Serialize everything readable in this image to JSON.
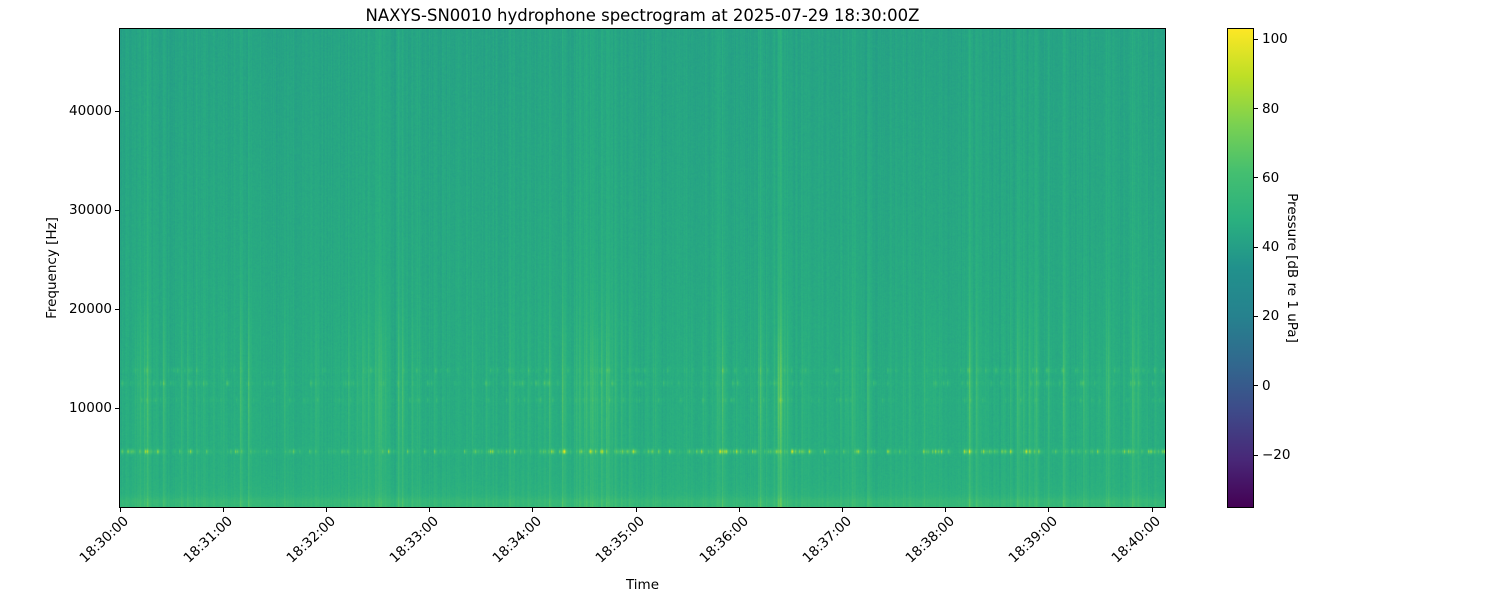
{
  "figure": {
    "background_color": "#ffffff"
  },
  "chart_data": {
    "type": "heatmap",
    "subtype": "hydrophone-spectrogram",
    "title": "NAXYS-SN0010 hydrophone spectrogram at 2025-07-29 18:30:00Z",
    "xlabel": "Time",
    "ylabel": "Frequency [Hz]",
    "x_tick_labels": [
      "18:30:00",
      "18:31:00",
      "18:32:00",
      "18:33:00",
      "18:34:00",
      "18:35:00",
      "18:36:00",
      "18:37:00",
      "18:38:00",
      "18:39:00",
      "18:40:00"
    ],
    "x_tick_interval_seconds": 60,
    "y_tick_values": [
      10000,
      20000,
      30000,
      40000
    ],
    "ylim": [
      0,
      48300
    ],
    "grid": false,
    "colorbar": {
      "label": "Pressure [dB re 1 uPa]",
      "tick_values": [
        100,
        80,
        60,
        40,
        20,
        0,
        -20
      ],
      "tick_labels": [
        "100",
        "80",
        "60",
        "40",
        "20",
        "0",
        "−20"
      ],
      "vmin": -35,
      "vmax": 103,
      "colormap": "viridis",
      "colormap_stops": [
        "#440154",
        "#482878",
        "#3e4a89",
        "#31688e",
        "#26828e",
        "#21918c",
        "#2ab07f",
        "#44bf70",
        "#7ad151",
        "#bddf26",
        "#fde725"
      ],
      "position": "right"
    },
    "content": {
      "description": "Teal-green ambient noise field (~42-48 dB) with vertical broadband impulse striations strongest below ~16 kHz, an intermittent bright dashed tonal band near 5.6 kHz reaching ~80 dB, weaker dash bands near 10.8, 12.5 and 13.8 kHz, and an elevated bright band below ~1.5 kHz along the bottom edge.",
      "render_params": {
        "seed": 1337,
        "base_db": 47,
        "tilt_db": -5,
        "pixel_noise_db": 2.2,
        "column_noise_db": 2.9,
        "impulse_prob": 0.22,
        "impulse_mean_db": 4.5,
        "impulse_max_db": 16,
        "impulse_tail": 0.5,
        "broadband_gain": {
          "floor": 0.35,
          "peak": 0.85,
          "peak_f_hz": 11500,
          "sigma_hz": 5500,
          "lowf_boost": 0.45,
          "lowf_tau_hz": 1600
        },
        "tonal_bands": [
          {
            "f_hz": 5600,
            "sigma_hz": 160,
            "on_prob": 0.4,
            "amp_mean_db": 11,
            "amp_max_db": 34,
            "carry": 0.5,
            "baseline_db": 1.2
          },
          {
            "f_hz": 12500,
            "sigma_hz": 190,
            "on_prob": 0.3,
            "amp_mean_db": 4.5,
            "amp_max_db": 13,
            "carry": 0.45,
            "baseline_db": 0.5
          },
          {
            "f_hz": 13800,
            "sigma_hz": 190,
            "on_prob": 0.27,
            "amp_mean_db": 4,
            "amp_max_db": 11,
            "carry": 0.45,
            "baseline_db": 0.4
          },
          {
            "f_hz": 10800,
            "sigma_hz": 170,
            "on_prob": 0.22,
            "amp_mean_db": 3.5,
            "amp_max_db": 9,
            "carry": 0.4,
            "baseline_db": 0.3
          }
        ],
        "low_band": {
          "amp_db": 6.5,
          "tau_hz": 1100,
          "line_f_hz": 600,
          "line_sigma_hz": 280,
          "line_amp_db": 3.5
        }
      }
    }
  }
}
